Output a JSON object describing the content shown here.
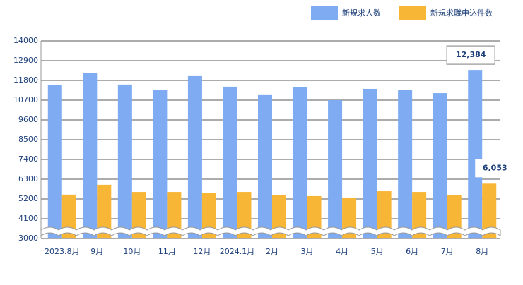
{
  "chart_data": {
    "type": "bar",
    "categories": [
      "2023.8月",
      "9月",
      "10月",
      "11月",
      "12月",
      "2024.1月",
      "2月",
      "3月",
      "4月",
      "5月",
      "6月",
      "7月",
      "8月"
    ],
    "series": [
      {
        "name": "新規求人数",
        "color": "#7eabf2",
        "values": [
          11550,
          12230,
          11570,
          11290,
          12040,
          11450,
          11020,
          11410,
          10700,
          11330,
          11250,
          11090,
          12384
        ],
        "value_labels": [
          null,
          null,
          null,
          null,
          null,
          null,
          null,
          null,
          null,
          null,
          null,
          null,
          "12,384"
        ]
      },
      {
        "name": "新規求職申込件数",
        "color": "#f8b637",
        "values": [
          5440,
          5990,
          5590,
          5590,
          5550,
          5590,
          5400,
          5360,
          5280,
          5630,
          5590,
          5400,
          6053
        ],
        "value_labels": [
          null,
          null,
          null,
          null,
          null,
          null,
          null,
          null,
          null,
          null,
          null,
          null,
          "6,053"
        ]
      }
    ],
    "ylim": [
      3000,
      14000
    ],
    "yticks": [
      3000,
      4100,
      5200,
      6300,
      7400,
      8500,
      9600,
      10700,
      11800,
      12900,
      14000
    ],
    "grid": true
  }
}
